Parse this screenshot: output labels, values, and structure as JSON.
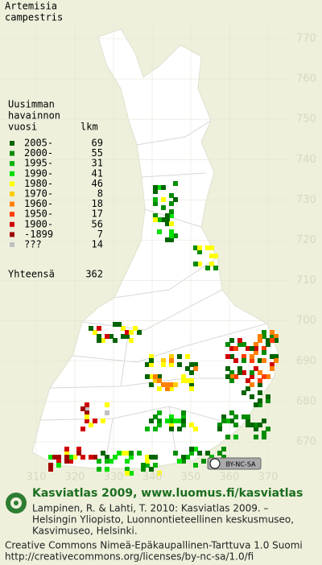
{
  "title_lines": [
    "Artemisia",
    "campestris"
  ],
  "legend": {
    "header_lines": [
      "Uusimman",
      "havainnon",
      "vuosi"
    ],
    "count_header": "lkm",
    "rows": [
      {
        "label": "2005-",
        "count": 69,
        "color": "#006400"
      },
      {
        "label": "2000-",
        "count": 55,
        "color": "#008c00"
      },
      {
        "label": "1995-",
        "count": 31,
        "color": "#00b400"
      },
      {
        "label": "1990-",
        "count": 41,
        "color": "#00e000"
      },
      {
        "label": "1980-",
        "count": 46,
        "color": "#ffff00"
      },
      {
        "label": "1970-",
        "count": 8,
        "color": "#ffcc00"
      },
      {
        "label": "1960-",
        "count": 18,
        "color": "#ff8000"
      },
      {
        "label": "1950-",
        "count": 17,
        "color": "#ff3c00"
      },
      {
        "label": "1900-",
        "count": 56,
        "color": "#d00000"
      },
      {
        "label": "-1899",
        "count": 7,
        "color": "#a00000"
      },
      {
        "label": "???",
        "count": 14,
        "color": "#c0c0c0"
      }
    ],
    "total_label": "Yhteensä",
    "total": 362
  },
  "grid": {
    "yticks": [
      770,
      760,
      750,
      740,
      730,
      720,
      710,
      700,
      690,
      680,
      670
    ],
    "xticks": [
      310,
      320,
      330,
      340,
      350,
      360,
      370
    ]
  },
  "license_badge": "BY-NC-SA",
  "footer": {
    "site": "Kasviatlas 2009, www.luomus.fi/kasviatlas",
    "citation_lines": [
      "Lampinen, R. & Lahti, T. 2010: Kasviatlas 2009. –",
      "Helsingin Yliopisto, Luonnontieteellinen keskusmuseo,",
      "Kasvimuseo, Helsinki."
    ],
    "license_lines": [
      "Creative Commons Nimeä-Epäkaupallinen-Tarttuva 1.0 Suomi",
      "http://creativecommons.org/licenses/by-nc-sa/1.0/fi"
    ]
  }
}
